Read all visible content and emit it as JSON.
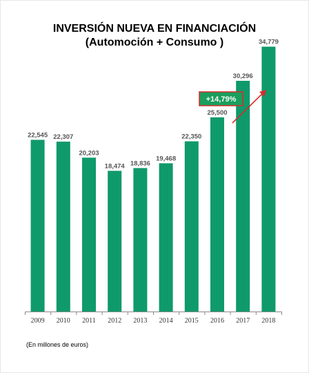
{
  "chart_data": {
    "type": "bar",
    "title": "INVERSIÓN NUEVA EN FINANCIACIÓN",
    "subtitle": "(Automoción + Consumo )",
    "categories": [
      "2009",
      "2010",
      "2011",
      "2012",
      "2013",
      "2014",
      "2015",
      "2016",
      "2017",
      "2018"
    ],
    "values": [
      22545,
      22307,
      20203,
      18474,
      18836,
      19468,
      22350,
      25500,
      30296,
      34779
    ],
    "value_labels": [
      "22,545",
      "22,307",
      "20,203",
      "18,474",
      "18,836",
      "19,468",
      "22,350",
      "25,500",
      "30,296",
      "34,779"
    ],
    "ylim": [
      0,
      40000
    ],
    "grid": false,
    "bar_color": "#0f9a6b",
    "annotation": {
      "text": "+14,79%",
      "box_color": "#1a9e5c",
      "border_color": "#d62c2c",
      "arrow_color": "#d62c2c"
    },
    "footnote": "(En millones de euros)"
  }
}
